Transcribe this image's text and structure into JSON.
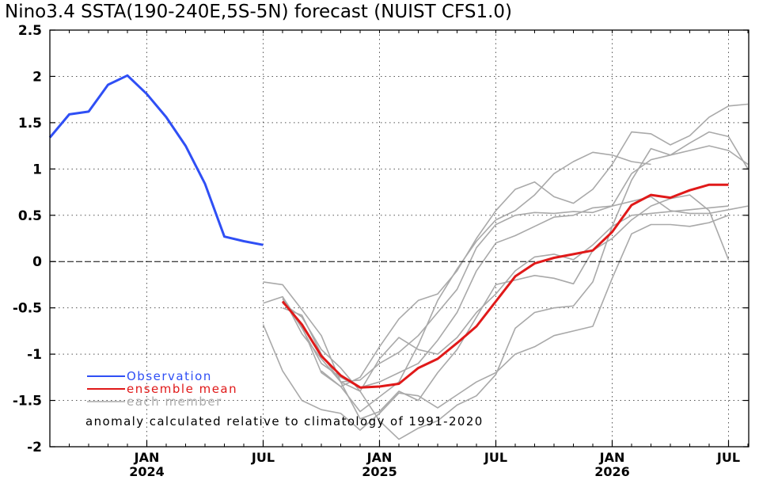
{
  "chart_data": {
    "type": "line",
    "title": "Nino3.4 SSTA(190-240E,5S-5N) forecast (NUIST CFS1.0)",
    "xlabel": "",
    "ylabel": "",
    "ylim": [
      -2,
      2.5
    ],
    "yticks": [
      "2.5",
      "2",
      "1.5",
      "1",
      "0.5",
      "0",
      "-0.5",
      "-1",
      "-1.5",
      "-2"
    ],
    "xticks": [
      {
        "month": "JAN",
        "year": "2024"
      },
      {
        "month": "JUL",
        "year": ""
      },
      {
        "month": "JAN",
        "year": "2025"
      },
      {
        "month": "JUL",
        "year": ""
      },
      {
        "month": "JAN",
        "year": "2026"
      },
      {
        "month": "JUL",
        "year": ""
      }
    ],
    "grid": true,
    "legend": [
      {
        "label": "Observation",
        "color": "#2f4ff5"
      },
      {
        "label": "ensemble mean",
        "color": "#e01919"
      },
      {
        "label": "each member",
        "color": "#a9a9a9"
      }
    ],
    "annotation": "anomaly calculated relative to climatology of 1991-2020",
    "x_start": "2023-08",
    "series": [
      {
        "name": "Observation",
        "color": "#2f4ff5",
        "x": [
          "2023-08",
          "2023-09",
          "2023-10",
          "2023-11",
          "2023-12",
          "2024-01",
          "2024-02",
          "2024-03",
          "2024-04",
          "2024-05",
          "2024-06",
          "2024-07"
        ],
        "values": [
          1.34,
          1.59,
          1.62,
          1.91,
          2.01,
          1.81,
          1.56,
          1.25,
          0.84,
          0.27,
          0.22,
          0.18
        ]
      },
      {
        "name": "ensemble mean",
        "color": "#e01919",
        "x": [
          "2024-08",
          "2024-09",
          "2024-10",
          "2024-11",
          "2024-12",
          "2025-01",
          "2025-02",
          "2025-03",
          "2025-04",
          "2025-05",
          "2025-06",
          "2025-07",
          "2025-08",
          "2025-09",
          "2025-10",
          "2025-11",
          "2025-12",
          "2026-01",
          "2026-02",
          "2026-03",
          "2026-04",
          "2026-05",
          "2026-06",
          "2026-07"
        ],
        "values": [
          -0.43,
          -0.68,
          -1.02,
          -1.23,
          -1.36,
          -1.35,
          -1.32,
          -1.15,
          -1.05,
          -0.88,
          -0.7,
          -0.43,
          -0.16,
          -0.02,
          0.04,
          0.08,
          0.12,
          0.32,
          0.61,
          0.72,
          0.69,
          0.77,
          0.83,
          0.83
        ]
      }
    ],
    "members": [
      {
        "x_start": "2024-07",
        "values": [
          -0.22,
          -0.25,
          -0.52,
          -0.8,
          -1.3,
          -1.7,
          -1.62,
          -1.4,
          -1.5,
          -1.2,
          -0.95,
          -0.6,
          -0.25,
          -0.2,
          -0.15,
          -0.18,
          -0.24,
          0.12,
          0.25,
          0.45,
          0.6,
          0.68,
          0.72,
          0.55,
          0.02
        ]
      },
      {
        "x_start": "2024-07",
        "values": [
          -0.45,
          -0.38,
          -0.78,
          -1.05,
          -1.3,
          -1.4,
          -1.05,
          -0.82,
          -0.95,
          -1.0,
          -0.82,
          -0.55,
          -0.35,
          -0.1,
          0.05,
          0.08,
          0.02,
          0.18,
          0.38,
          0.5,
          0.52,
          0.54,
          0.56,
          0.58,
          0.6
        ]
      },
      {
        "x_start": "2024-07",
        "values": [
          -0.68,
          -1.18,
          -1.5,
          -1.6,
          -1.64,
          -1.82,
          -1.64,
          -1.42,
          -1.45,
          -1.58,
          -1.44,
          -1.3,
          -1.2,
          -1.0,
          -0.92,
          -0.8,
          -0.75,
          -0.7,
          -0.18,
          0.3,
          0.4,
          0.4,
          0.38,
          0.42,
          0.5
        ]
      },
      {
        "x_start": "2024-08",
        "values": [
          -0.38,
          -0.7,
          -1.2,
          -1.35,
          -1.25,
          -0.92,
          -0.62,
          -0.42,
          -0.35,
          -0.1,
          0.25,
          0.55,
          0.78,
          0.86,
          0.7,
          0.63,
          0.78,
          1.05,
          1.4,
          1.38,
          1.26,
          1.36,
          1.56,
          1.68,
          1.7
        ]
      },
      {
        "x_start": "2024-08",
        "values": [
          -0.5,
          -0.58,
          -1.0,
          -1.3,
          -1.28,
          -1.1,
          -0.98,
          -0.8,
          -0.55,
          -0.3,
          0.15,
          0.4,
          0.5,
          0.53,
          0.52,
          0.54,
          0.53,
          0.6,
          0.95,
          1.1,
          1.15,
          1.2,
          1.25,
          1.2,
          1.05
        ]
      },
      {
        "x_start": "2024-08",
        "values": [
          -0.4,
          -0.72,
          -1.1,
          -1.25,
          -1.36,
          -1.3,
          -1.2,
          -1.1,
          -0.85,
          -0.55,
          -0.1,
          0.2,
          0.28,
          0.38,
          0.48,
          0.5,
          0.58,
          0.6,
          0.65,
          0.7,
          0.55,
          0.52,
          0.52,
          0.56,
          0.6
        ]
      },
      {
        "x_start": "2024-08",
        "values": [
          -0.45,
          -0.6,
          -0.95,
          -1.15,
          -1.4,
          -1.72,
          -1.92,
          -1.8,
          -1.72,
          -1.55,
          -1.45,
          -1.22,
          -0.72,
          -0.55,
          -0.5,
          -0.48,
          -0.22,
          0.38,
          0.88,
          1.22,
          1.15,
          1.28,
          1.4,
          1.35,
          1.0
        ]
      },
      {
        "x_start": "2024-10",
        "values": [
          -1.18,
          -1.35,
          -1.62,
          -1.46,
          -1.3,
          -0.9,
          -0.42,
          -0.08,
          0.22,
          0.45,
          0.55,
          0.72,
          0.95,
          1.08,
          1.18,
          1.15,
          1.08,
          1.05
        ]
      }
    ]
  }
}
